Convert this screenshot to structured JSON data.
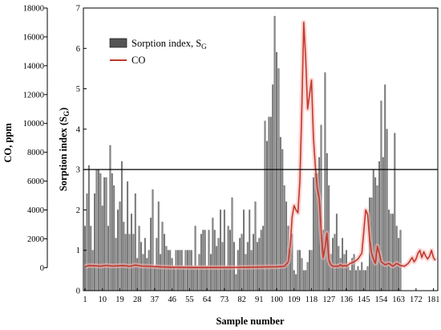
{
  "chart_data": {
    "type": "bar",
    "xlabel": "Sample number",
    "ylabel": "Sorption index (S",
    "ylabel_sub": "G",
    "ylabel_end": ")",
    "y2label": "CO, ppm",
    "xlim": [
      1,
      182
    ],
    "ylim": [
      0,
      7
    ],
    "y2lim": [
      0,
      18000
    ],
    "y2_origin_on_left": -0.62,
    "x_ticks": [
      "1",
      "10",
      "19",
      "28",
      "37",
      "46",
      "55",
      "64",
      "73",
      "82",
      "91",
      "100",
      "109",
      "118",
      "127",
      "136",
      "145",
      "154",
      "163",
      "172",
      "181"
    ],
    "y_ticks": [
      "0",
      "1",
      "2",
      "3",
      "4",
      "5",
      "6",
      "7"
    ],
    "y2_ticks": [
      "0",
      "2000",
      "4000",
      "6000",
      "8000",
      "10000",
      "12000",
      "14000",
      "16000",
      "18000"
    ],
    "threshold": 3.0,
    "grid": false,
    "legend_position": "top-left",
    "series": [
      {
        "name": "Sorption index, S",
        "name_sub": "G",
        "type": "bar",
        "color": "#8a8a8a",
        "values": [
          1.6,
          2.4,
          3.1,
          1.6,
          1.0,
          2.4,
          3.0,
          3.0,
          2.9,
          2.1,
          2.8,
          2.8,
          1.6,
          3.6,
          2.9,
          2.6,
          1.3,
          2.0,
          2.2,
          3.2,
          1.7,
          1.4,
          2.7,
          1.4,
          1.9,
          1.4,
          2.4,
          0.8,
          1.6,
          1.2,
          0.9,
          1.3,
          0.8,
          1.0,
          1.8,
          2.5,
          0.6,
          1.3,
          2.2,
          0.9,
          1.7,
          1.4,
          1.1,
          1.0,
          1.0,
          0.8,
          0.6,
          1.0,
          1.0,
          1.0,
          1.0,
          0.6,
          1.0,
          1.0,
          1.0,
          1.0,
          0.6,
          1.6,
          0.6,
          0.9,
          1.4,
          1.5,
          1.5,
          0.6,
          1.5,
          0.9,
          1.8,
          1.5,
          1.1,
          1.3,
          2.0,
          1.2,
          2.0,
          0.6,
          1.6,
          1.5,
          2.3,
          1.2,
          0.4,
          1.0,
          1.3,
          1.4,
          2.0,
          0.9,
          1.2,
          2.0,
          1.0,
          1.4,
          2.2,
          1.2,
          1.3,
          1.5,
          1.6,
          4.2,
          3.7,
          4.3,
          4.3,
          5.1,
          6.8,
          5.9,
          5.5,
          3.8,
          3.5,
          2.6,
          2.2,
          1.6,
          1.0,
          1.4,
          0.5,
          0.4,
          1.0,
          1.0,
          0.8,
          0.5,
          0.5,
          0.7,
          1.0,
          1.0,
          2.8,
          2.9,
          2.9,
          3.3,
          4.1,
          1.5,
          5.4,
          3.4,
          2.6,
          0.9,
          1.3,
          1.4,
          1.9,
          1.1,
          0.8,
          1.3,
          0.9,
          1.0,
          0.6,
          0.5,
          0.8,
          0.9,
          0.5,
          0.6,
          0.5,
          0.7,
          0.5,
          0.5,
          0.6,
          2.3,
          2.3,
          3.0,
          2.8,
          2.6,
          3.2,
          4.7,
          3.3,
          5.1,
          4.0,
          2.0,
          1.9,
          1.9,
          3.9,
          1.6,
          1.3,
          1.5
        ],
        "start_sample": 1
      },
      {
        "name": "CO",
        "type": "line",
        "axis": "right",
        "color": "#c0392b",
        "glow_color": "#f5b4b4",
        "x": [
          1,
          3,
          6,
          9,
          12,
          15,
          18,
          21,
          24,
          27,
          30,
          33,
          36,
          40,
          45,
          50,
          55,
          60,
          65,
          70,
          75,
          80,
          85,
          90,
          95,
          100,
          104,
          106,
          107,
          108,
          109,
          110,
          111,
          112,
          113,
          114,
          115,
          116,
          117,
          118,
          119,
          120,
          121,
          122,
          123,
          124,
          125,
          126,
          127,
          128,
          129,
          130,
          131,
          132,
          133,
          134,
          135,
          136,
          138,
          140,
          142,
          144,
          145,
          146,
          147,
          148,
          149,
          150,
          151,
          152,
          153,
          154,
          156,
          158,
          160,
          162,
          164,
          166,
          168,
          170,
          171,
          172,
          173,
          174,
          175,
          176,
          177,
          178,
          179,
          180,
          181,
          182
        ],
        "y": [
          60,
          150,
          130,
          100,
          160,
          110,
          130,
          150,
          90,
          180,
          110,
          100,
          90,
          50,
          30,
          20,
          10,
          10,
          10,
          10,
          10,
          20,
          30,
          40,
          50,
          60,
          100,
          400,
          1500,
          3500,
          4300,
          4000,
          3800,
          6000,
          11000,
          17000,
          14500,
          11000,
          12000,
          13000,
          9000,
          7000,
          5500,
          4800,
          2500,
          700,
          1400,
          2400,
          500,
          200,
          100,
          100,
          100,
          100,
          200,
          100,
          150,
          100,
          300,
          400,
          600,
          1000,
          2500,
          4000,
          3700,
          2000,
          1000,
          600,
          300,
          1500,
          1000,
          400,
          200,
          300,
          100,
          300,
          150,
          100,
          300,
          700,
          400,
          600,
          1000,
          1200,
          700,
          1100,
          800,
          600,
          800,
          1200,
          700,
          500
        ]
      }
    ]
  }
}
